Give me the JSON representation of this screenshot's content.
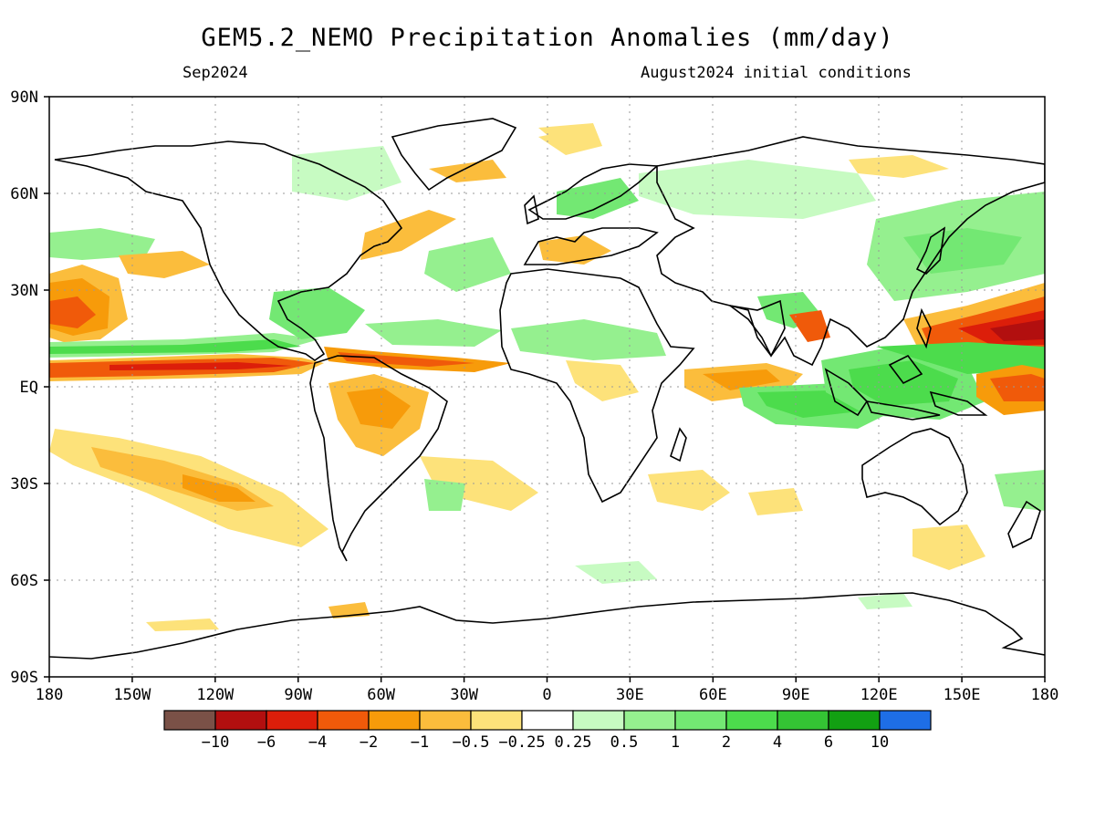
{
  "title": "GEM5.2_NEMO Precipitation Anomalies (mm/day)",
  "valid_month": "Sep2024",
  "initial_conditions": "August2024 initial conditions",
  "lat_labels": [
    "90N",
    "60N",
    "30N",
    "EQ",
    "30S",
    "60S",
    "90S"
  ],
  "lon_labels": [
    "180",
    "150W",
    "120W",
    "90W",
    "60W",
    "30W",
    "0",
    "30E",
    "60E",
    "90E",
    "120E",
    "150E",
    "180"
  ],
  "colorbar": {
    "colors": [
      "#7a5147",
      "#b20f0f",
      "#dc1e0a",
      "#f05a0a",
      "#f79b0a",
      "#fbbd3c",
      "#fde27a",
      "#ffffff",
      "#c7fbc2",
      "#95f08f",
      "#73e873",
      "#4cdc4c",
      "#34c434",
      "#12a012",
      "#1e6ee6"
    ],
    "labels": [
      "-10",
      "-6",
      "-4",
      "-2",
      "-1",
      "-0.5",
      "-0.25",
      "0.25",
      "0.5",
      "1",
      "2",
      "4",
      "6",
      "10"
    ]
  }
}
